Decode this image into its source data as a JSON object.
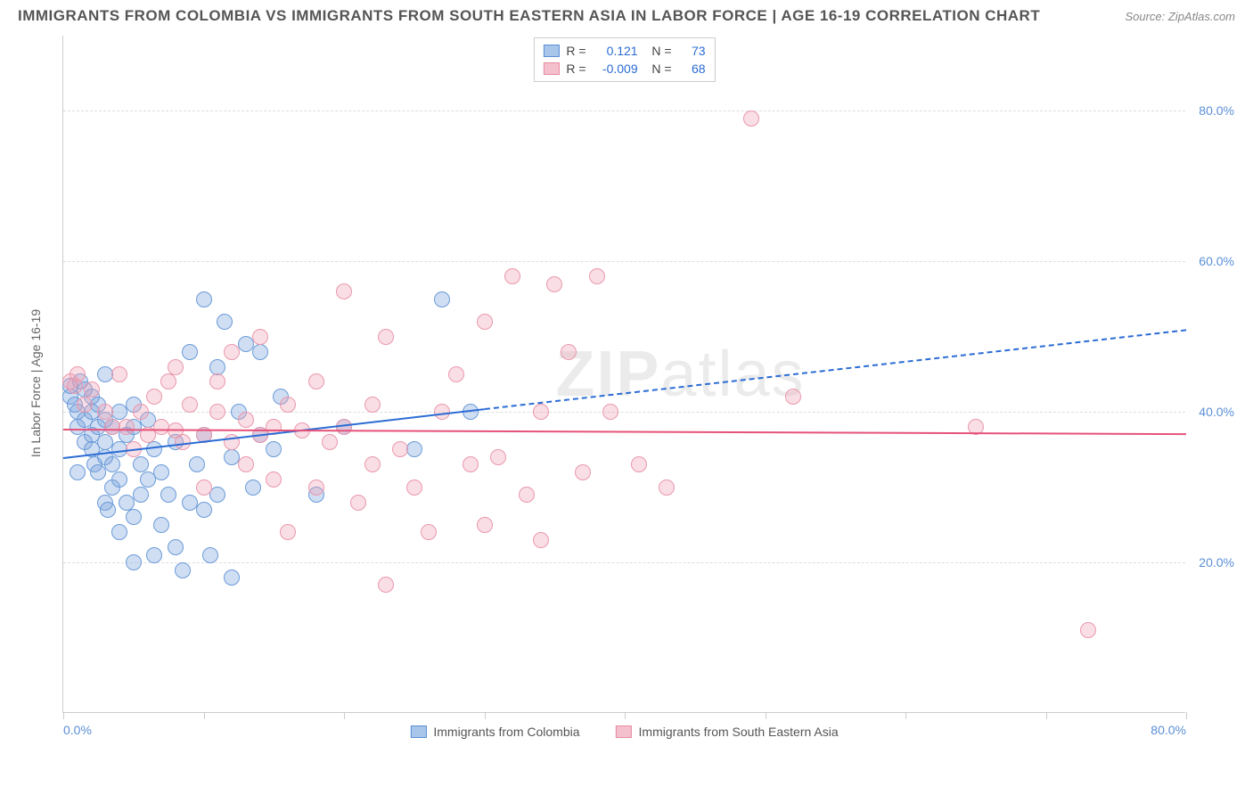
{
  "title": "IMMIGRANTS FROM COLOMBIA VS IMMIGRANTS FROM SOUTH EASTERN ASIA IN LABOR FORCE | AGE 16-19 CORRELATION CHART",
  "source": "Source: ZipAtlas.com",
  "watermark_bold": "ZIP",
  "watermark_light": "atlas",
  "chart": {
    "type": "scatter",
    "ylabel": "In Labor Force | Age 16-19",
    "xlim": [
      0,
      80
    ],
    "ylim": [
      0,
      90
    ],
    "y_ticks": [
      20,
      40,
      60,
      80
    ],
    "y_tick_labels": [
      "20.0%",
      "40.0%",
      "60.0%",
      "80.0%"
    ],
    "x_ticks": [
      0,
      10,
      20,
      30,
      40,
      50,
      60,
      70,
      80
    ],
    "x_tick_labels_shown": {
      "0": "0.0%",
      "80": "80.0%"
    },
    "background_color": "#ffffff",
    "grid_color": "#dddddd",
    "marker_radius": 9,
    "marker_border_width": 1.5,
    "series": [
      {
        "name": "Immigrants from Colombia",
        "fill": "rgba(120,160,220,0.35)",
        "stroke": "#6a9bd8",
        "swatch_fill": "#a8c5ea",
        "swatch_border": "#5b8fd6",
        "R": "0.121",
        "N": "73",
        "trend": {
          "color": "#2b6cd4",
          "x1": 0,
          "y1": 34,
          "x2_solid": 30,
          "y2_solid": 40.5,
          "x2_dash": 80,
          "y2_dash": 51
        },
        "points": [
          [
            0.5,
            42
          ],
          [
            0.5,
            43.5
          ],
          [
            0.8,
            41
          ],
          [
            1,
            38
          ],
          [
            1,
            32
          ],
          [
            1,
            40
          ],
          [
            1.2,
            44
          ],
          [
            1.5,
            43
          ],
          [
            1.5,
            36
          ],
          [
            1.5,
            39
          ],
          [
            2,
            37
          ],
          [
            2,
            42
          ],
          [
            2,
            35
          ],
          [
            2,
            40
          ],
          [
            2.2,
            33
          ],
          [
            2.5,
            32
          ],
          [
            2.5,
            38
          ],
          [
            2.5,
            41
          ],
          [
            3,
            34
          ],
          [
            3,
            39
          ],
          [
            3,
            28
          ],
          [
            3,
            36
          ],
          [
            3,
            45
          ],
          [
            3.2,
            27
          ],
          [
            3.5,
            38
          ],
          [
            3.5,
            33
          ],
          [
            3.5,
            30
          ],
          [
            4,
            35
          ],
          [
            4,
            31
          ],
          [
            4,
            40
          ],
          [
            4,
            24
          ],
          [
            4.5,
            28
          ],
          [
            4.5,
            37
          ],
          [
            5,
            26
          ],
          [
            5,
            38
          ],
          [
            5,
            41
          ],
          [
            5,
            20
          ],
          [
            5.5,
            29
          ],
          [
            5.5,
            33
          ],
          [
            6,
            31
          ],
          [
            6,
            39
          ],
          [
            6.5,
            21
          ],
          [
            6.5,
            35
          ],
          [
            7,
            25
          ],
          [
            7,
            32
          ],
          [
            7.5,
            29
          ],
          [
            8,
            22
          ],
          [
            8,
            36
          ],
          [
            8.5,
            19
          ],
          [
            9,
            28
          ],
          [
            9,
            48
          ],
          [
            9.5,
            33
          ],
          [
            10,
            37
          ],
          [
            10,
            27
          ],
          [
            10,
            55
          ],
          [
            10.5,
            21
          ],
          [
            11,
            29
          ],
          [
            11,
            46
          ],
          [
            11.5,
            52
          ],
          [
            12,
            18
          ],
          [
            12,
            34
          ],
          [
            12.5,
            40
          ],
          [
            13,
            49
          ],
          [
            13.5,
            30
          ],
          [
            14,
            48
          ],
          [
            14,
            37
          ],
          [
            15,
            35
          ],
          [
            15.5,
            42
          ],
          [
            18,
            29
          ],
          [
            20,
            38
          ],
          [
            25,
            35
          ],
          [
            27,
            55
          ],
          [
            29,
            40
          ]
        ]
      },
      {
        "name": "Immigrants from South Eastern Asia",
        "fill": "rgba(240,160,180,0.35)",
        "stroke": "#e998ac",
        "swatch_fill": "#f5c0cd",
        "swatch_border": "#e68aa0",
        "R": "-0.009",
        "N": "68",
        "trend": {
          "color": "#e6527a",
          "x1": 0,
          "y1": 37.8,
          "x2_solid": 80,
          "y2_solid": 37.2,
          "x2_dash": 80,
          "y2_dash": 37.2
        },
        "points": [
          [
            0.5,
            44
          ],
          [
            0.8,
            43.5
          ],
          [
            1,
            45
          ],
          [
            1.5,
            41
          ],
          [
            2,
            43
          ],
          [
            3,
            40
          ],
          [
            3.5,
            38
          ],
          [
            4,
            45
          ],
          [
            4.5,
            38
          ],
          [
            5,
            35
          ],
          [
            5.5,
            40
          ],
          [
            6,
            37
          ],
          [
            6.5,
            42
          ],
          [
            7,
            38
          ],
          [
            7.5,
            44
          ],
          [
            8,
            37.5
          ],
          [
            8,
            46
          ],
          [
            8.5,
            36
          ],
          [
            9,
            41
          ],
          [
            10,
            37
          ],
          [
            10,
            30
          ],
          [
            11,
            40
          ],
          [
            11,
            44
          ],
          [
            12,
            36
          ],
          [
            12,
            48
          ],
          [
            13,
            39
          ],
          [
            13,
            33
          ],
          [
            14,
            37
          ],
          [
            14,
            50
          ],
          [
            15,
            38
          ],
          [
            15,
            31
          ],
          [
            16,
            41
          ],
          [
            16,
            24
          ],
          [
            17,
            37.5
          ],
          [
            18,
            30
          ],
          [
            18,
            44
          ],
          [
            19,
            36
          ],
          [
            20,
            56
          ],
          [
            20,
            38
          ],
          [
            21,
            28
          ],
          [
            22,
            41
          ],
          [
            22,
            33
          ],
          [
            23,
            17
          ],
          [
            23,
            50
          ],
          [
            24,
            35
          ],
          [
            25,
            30
          ],
          [
            26,
            24
          ],
          [
            27,
            40
          ],
          [
            28,
            45
          ],
          [
            29,
            33
          ],
          [
            30,
            52
          ],
          [
            30,
            25
          ],
          [
            31,
            34
          ],
          [
            32,
            58
          ],
          [
            33,
            29
          ],
          [
            34,
            23
          ],
          [
            34,
            40
          ],
          [
            35,
            57
          ],
          [
            36,
            48
          ],
          [
            37,
            32
          ],
          [
            38,
            58
          ],
          [
            39,
            40
          ],
          [
            41,
            33
          ],
          [
            43,
            30
          ],
          [
            49,
            79
          ],
          [
            52,
            42
          ],
          [
            65,
            38
          ],
          [
            73,
            11
          ]
        ]
      }
    ]
  }
}
